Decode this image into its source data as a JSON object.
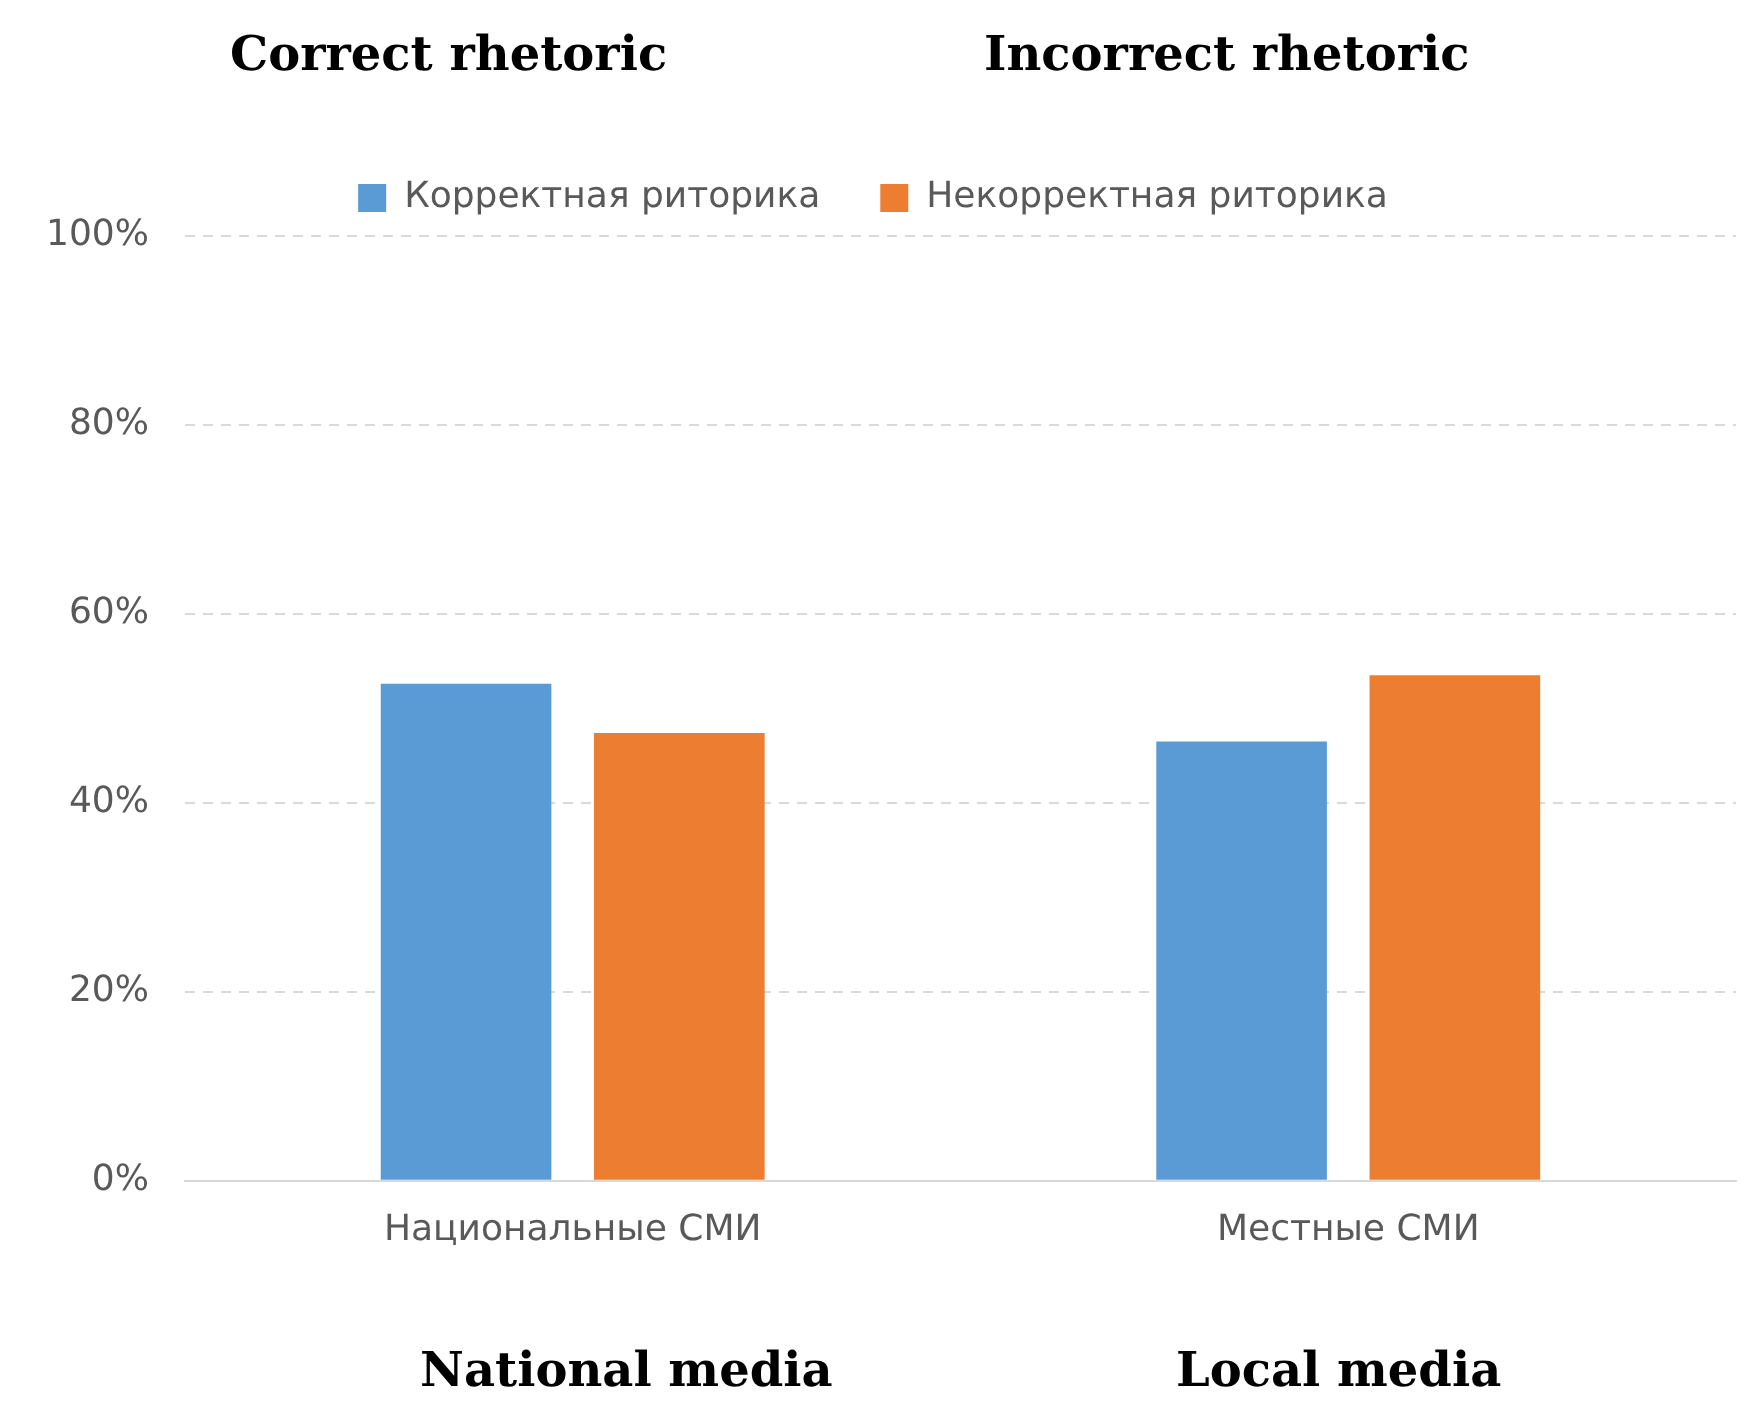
{
  "chart_data": {
    "type": "bar",
    "categories": [
      "Национальные СМИ",
      "Местные СМИ"
    ],
    "series": [
      {
        "name": "Корректная риторика",
        "color": "#5b9bd5",
        "values": [
          52.6,
          46.5
        ]
      },
      {
        "name": "Некорректная риторика",
        "color": "#ed7d31",
        "values": [
          47.4,
          53.5
        ]
      }
    ],
    "ylim": [
      0,
      100
    ],
    "yticks": [
      {
        "value": 0,
        "label": "0%"
      },
      {
        "value": 20,
        "label": "20%"
      },
      {
        "value": 40,
        "label": "40%"
      },
      {
        "value": 60,
        "label": "60%"
      },
      {
        "value": 80,
        "label": "80%"
      },
      {
        "value": 100,
        "label": "100%"
      }
    ],
    "grid": "y",
    "legend": "top",
    "annotations": [
      "Correct rhetoric",
      "Incorrect rhetoric",
      "National media",
      "Local media"
    ]
  }
}
